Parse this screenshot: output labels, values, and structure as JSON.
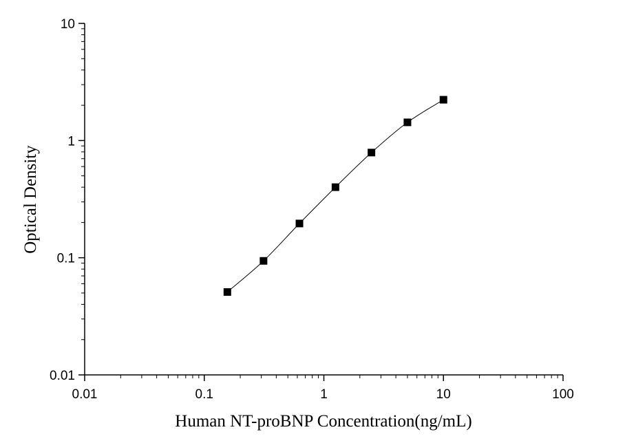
{
  "chart_data": {
    "type": "scatter",
    "title": "",
    "xlabel": "Human NT-proBNP Concentration(ng/mL)",
    "ylabel": "Optical Density",
    "xscale": "log",
    "yscale": "log",
    "xlim": [
      0.01,
      100
    ],
    "ylim": [
      0.01,
      10
    ],
    "grid": false,
    "legend": "none",
    "x_ticks": [
      "0.01",
      "0.1",
      "1",
      "10",
      "100"
    ],
    "y_ticks": [
      "0.01",
      "0.1",
      "1",
      "10"
    ],
    "series": [
      {
        "marker": "square",
        "fit_curve": true,
        "x": [
          0.156,
          0.313,
          0.625,
          1.25,
          2.5,
          5,
          10
        ],
        "y": [
          0.051,
          0.094,
          0.196,
          0.4,
          0.79,
          1.43,
          2.23
        ]
      }
    ],
    "colors": {
      "marker": "#000000",
      "curve": "#000000",
      "axis": "#000000"
    }
  }
}
